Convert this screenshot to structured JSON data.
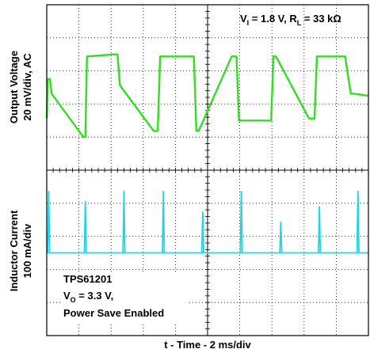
{
  "chart_data": [
    {
      "type": "line",
      "ylabel_line1": "Output Voltage",
      "ylabel_line2": "20 mV/div, AC",
      "annotation": {
        "prefix": "V",
        "prefix_sub": "I",
        "mid": " = 1.8 V, R",
        "mid_sub": "L",
        "suffix": " = 33 kΩ"
      },
      "color": "#33dd22",
      "xlim": [
        0,
        20
      ],
      "ylim": [
        -80,
        80
      ],
      "series": [
        {
          "x": [
            0.0,
            0.06,
            0.2,
            0.3,
            2.28,
            2.4,
            2.5,
            4.2,
            4.4,
            4.55,
            6.65,
            6.9,
            7.05,
            9.15,
            9.3,
            9.45,
            11.5,
            11.8,
            11.95,
            13.95,
            14.1,
            14.25,
            16.3,
            16.65,
            16.8,
            18.55,
            18.9,
            19.05,
            20.0
          ],
          "y": [
            -30,
            8,
            8,
            -6,
            -48,
            -48,
            30,
            32,
            32,
            2,
            -42,
            -42,
            30,
            30,
            -42,
            -42,
            30,
            30,
            -32,
            -32,
            30,
            30,
            -30,
            -30,
            30,
            30,
            -6,
            -6,
            -8
          ]
        }
      ]
    },
    {
      "type": "line",
      "ylabel_line1": "Inductor Current",
      "ylabel_line2": "100 mA/div",
      "annotation": {
        "line1": "TPS61201",
        "line2_prefix": "V",
        "line2_sub": "O",
        "line2_suffix": " = 3.3 V,",
        "line3": "Power Save Enabled"
      },
      "color": "#22d5e6",
      "xlim": [
        0,
        20
      ],
      "ylim": [
        -160,
        160
      ],
      "baseline": 0,
      "series": [
        {
          "pulses": [
            {
              "x": 0.12,
              "y": 120
            },
            {
              "x": 2.4,
              "y": 100
            },
            {
              "x": 4.8,
              "y": 120
            },
            {
              "x": 7.25,
              "y": 120
            },
            {
              "x": 9.7,
              "y": 80
            },
            {
              "x": 12.1,
              "y": 120
            },
            {
              "x": 14.55,
              "y": 60
            },
            {
              "x": 16.95,
              "y": 90
            },
            {
              "x": 19.35,
              "y": 120
            }
          ]
        }
      ]
    }
  ],
  "xlabel": "t - Time - 2 ms/div"
}
